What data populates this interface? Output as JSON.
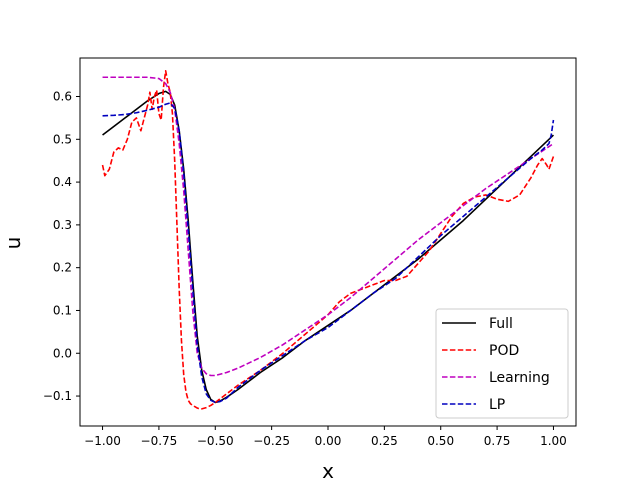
{
  "chart_data": {
    "type": "line",
    "title": "",
    "xlabel": "x",
    "ylabel": "u",
    "xlim": [
      -1.1,
      1.1
    ],
    "ylim": [
      -0.17,
      0.69
    ],
    "grid": false,
    "legend_position": "lower-right",
    "x_ticks": [
      -1.0,
      -0.75,
      -0.5,
      -0.25,
      0.0,
      0.25,
      0.5,
      0.75,
      1.0
    ],
    "x_tick_labels": [
      "−1.00",
      "−0.75",
      "−0.50",
      "−0.25",
      "0.00",
      "0.25",
      "0.50",
      "0.75",
      "1.00"
    ],
    "y_ticks": [
      -0.1,
      0.0,
      0.1,
      0.2,
      0.3,
      0.4,
      0.5,
      0.6
    ],
    "y_tick_labels": [
      "−0.1",
      "0.0",
      "0.1",
      "0.2",
      "0.3",
      "0.4",
      "0.5",
      "0.6"
    ],
    "series": [
      {
        "name": "Full",
        "color": "#000000",
        "dash": "solid",
        "x": [
          -1.0,
          -0.9,
          -0.8,
          -0.75,
          -0.72,
          -0.7,
          -0.68,
          -0.66,
          -0.64,
          -0.62,
          -0.6,
          -0.58,
          -0.56,
          -0.54,
          -0.52,
          -0.5,
          -0.48,
          -0.45,
          -0.4,
          -0.3,
          -0.2,
          -0.1,
          0.0,
          0.1,
          0.2,
          0.3,
          0.4,
          0.5,
          0.6,
          0.7,
          0.8,
          0.9,
          1.0
        ],
        "y": [
          0.51,
          0.55,
          0.59,
          0.607,
          0.612,
          0.605,
          0.58,
          0.52,
          0.43,
          0.31,
          0.17,
          0.04,
          -0.04,
          -0.085,
          -0.108,
          -0.115,
          -0.112,
          -0.103,
          -0.085,
          -0.045,
          -0.01,
          0.03,
          0.065,
          0.1,
          0.14,
          0.18,
          0.22,
          0.265,
          0.31,
          0.36,
          0.41,
          0.46,
          0.51
        ]
      },
      {
        "name": "POD",
        "color": "#ff0000",
        "dash": "dashed",
        "x": [
          -1.0,
          -0.99,
          -0.97,
          -0.95,
          -0.93,
          -0.91,
          -0.89,
          -0.87,
          -0.85,
          -0.83,
          -0.81,
          -0.8,
          -0.79,
          -0.78,
          -0.77,
          -0.76,
          -0.75,
          -0.74,
          -0.73,
          -0.72,
          -0.71,
          -0.7,
          -0.69,
          -0.68,
          -0.67,
          -0.66,
          -0.65,
          -0.64,
          -0.63,
          -0.62,
          -0.61,
          -0.6,
          -0.59,
          -0.58,
          -0.57,
          -0.56,
          -0.54,
          -0.52,
          -0.5,
          -0.45,
          -0.4,
          -0.3,
          -0.2,
          -0.1,
          0.0,
          0.05,
          0.1,
          0.15,
          0.2,
          0.25,
          0.3,
          0.35,
          0.4,
          0.45,
          0.5,
          0.55,
          0.6,
          0.65,
          0.7,
          0.75,
          0.8,
          0.85,
          0.9,
          0.93,
          0.95,
          0.97,
          0.98,
          1.0
        ],
        "y": [
          0.44,
          0.415,
          0.43,
          0.47,
          0.48,
          0.475,
          0.5,
          0.54,
          0.55,
          0.52,
          0.56,
          0.58,
          0.61,
          0.57,
          0.6,
          0.615,
          0.56,
          0.545,
          0.62,
          0.66,
          0.63,
          0.61,
          0.56,
          0.45,
          0.3,
          0.15,
          0.03,
          -0.05,
          -0.09,
          -0.11,
          -0.118,
          -0.122,
          -0.125,
          -0.128,
          -0.13,
          -0.13,
          -0.127,
          -0.122,
          -0.115,
          -0.095,
          -0.075,
          -0.04,
          0.0,
          0.045,
          0.09,
          0.12,
          0.14,
          0.15,
          0.16,
          0.17,
          0.17,
          0.18,
          0.21,
          0.24,
          0.28,
          0.32,
          0.35,
          0.365,
          0.37,
          0.36,
          0.355,
          0.37,
          0.41,
          0.44,
          0.455,
          0.44,
          0.43,
          0.46
        ]
      },
      {
        "name": "Learning",
        "color": "#bf00bf",
        "dash": "dashed",
        "x": [
          -1.0,
          -0.95,
          -0.9,
          -0.85,
          -0.8,
          -0.75,
          -0.72,
          -0.7,
          -0.68,
          -0.66,
          -0.64,
          -0.62,
          -0.6,
          -0.58,
          -0.56,
          -0.54,
          -0.52,
          -0.5,
          -0.45,
          -0.4,
          -0.3,
          -0.2,
          -0.1,
          0.0,
          0.1,
          0.2,
          0.3,
          0.4,
          0.5,
          0.6,
          0.7,
          0.8,
          0.9,
          1.0
        ],
        "y": [
          0.645,
          0.645,
          0.645,
          0.645,
          0.645,
          0.642,
          0.63,
          0.61,
          0.57,
          0.49,
          0.38,
          0.24,
          0.1,
          0.0,
          -0.035,
          -0.048,
          -0.052,
          -0.052,
          -0.045,
          -0.035,
          -0.01,
          0.02,
          0.055,
          0.09,
          0.13,
          0.175,
          0.22,
          0.265,
          0.305,
          0.345,
          0.385,
          0.42,
          0.455,
          0.49
        ]
      },
      {
        "name": "LP",
        "color": "#0000bf",
        "dash": "dashed",
        "x": [
          -1.0,
          -0.95,
          -0.9,
          -0.85,
          -0.8,
          -0.75,
          -0.72,
          -0.7,
          -0.68,
          -0.66,
          -0.64,
          -0.62,
          -0.6,
          -0.58,
          -0.56,
          -0.54,
          -0.52,
          -0.5,
          -0.48,
          -0.45,
          -0.4,
          -0.3,
          -0.2,
          -0.1,
          0.0,
          0.1,
          0.2,
          0.3,
          0.4,
          0.5,
          0.6,
          0.7,
          0.8,
          0.9,
          0.95,
          0.98,
          0.99,
          1.0
        ],
        "y": [
          0.555,
          0.556,
          0.558,
          0.562,
          0.568,
          0.575,
          0.582,
          0.585,
          0.572,
          0.52,
          0.42,
          0.29,
          0.15,
          0.02,
          -0.055,
          -0.095,
          -0.11,
          -0.115,
          -0.113,
          -0.105,
          -0.08,
          -0.04,
          -0.005,
          0.03,
          0.06,
          0.1,
          0.14,
          0.175,
          0.225,
          0.275,
          0.32,
          0.365,
          0.41,
          0.455,
          0.475,
          0.49,
          0.51,
          0.545
        ]
      }
    ]
  }
}
